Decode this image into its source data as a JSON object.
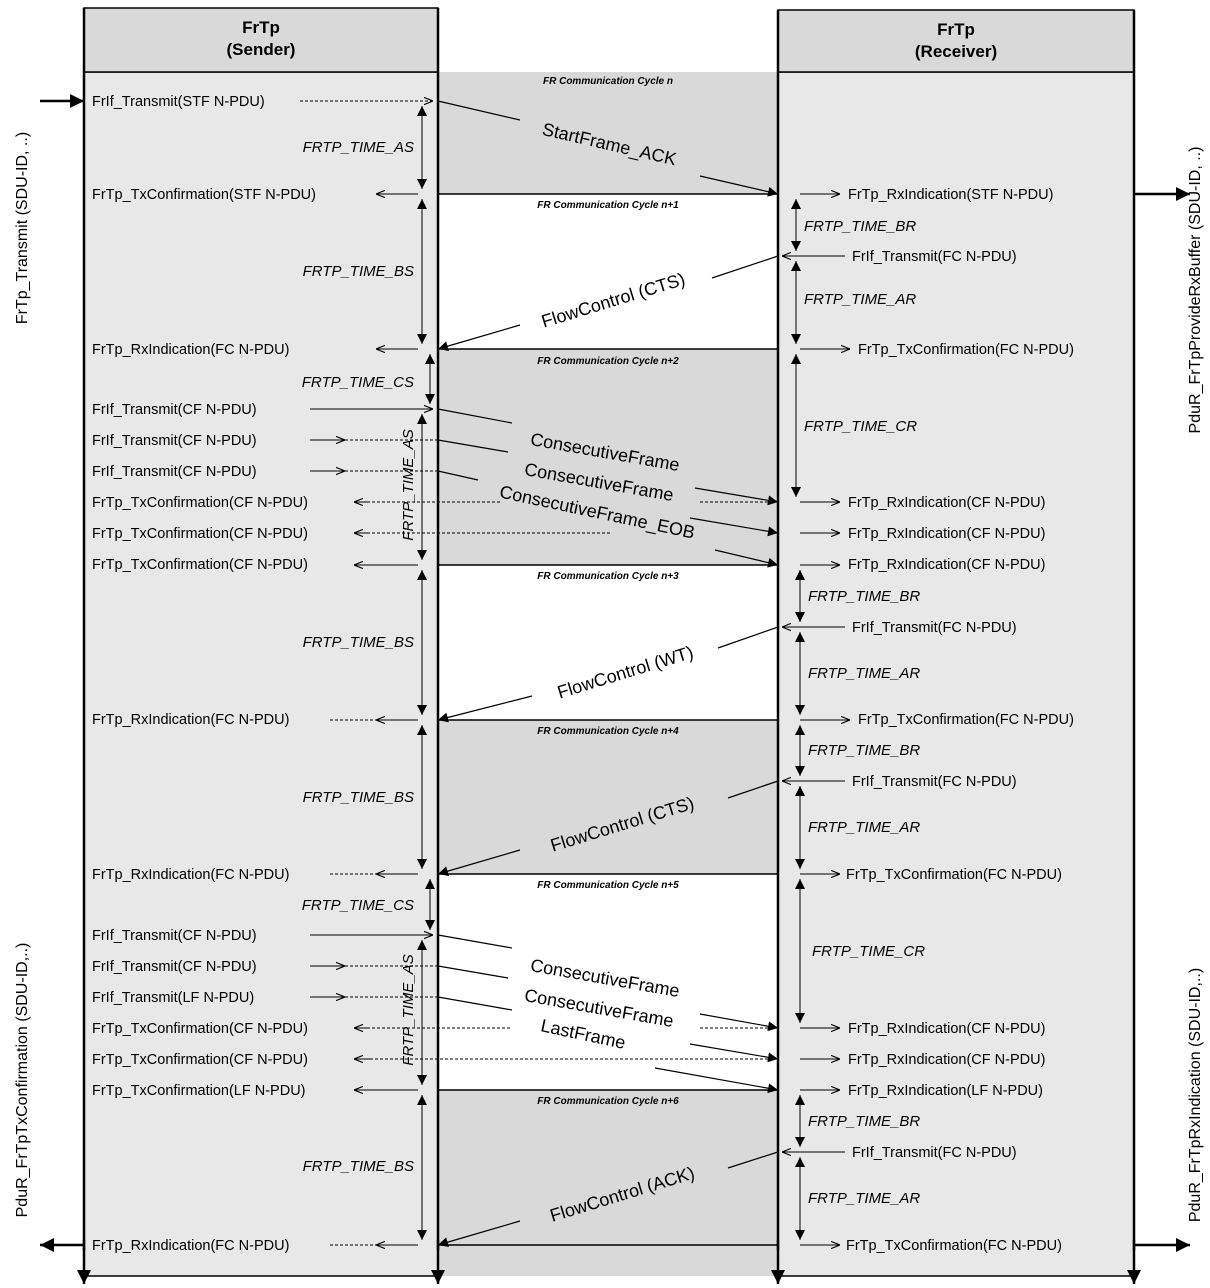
{
  "columns": {
    "sender": {
      "line1": "FrTp",
      "line2": "(Sender)"
    },
    "receiver": {
      "line1": "FrTp",
      "line2": "(Receiver)"
    }
  },
  "side_labels": {
    "left_top": "FrTp_Transmit (SDU-ID, ..)",
    "left_bottom": "PduR_FrTpTxConfirmation (SDU-ID,..)",
    "right_top": "PduR_FrTpProvideRxBuffer (SDU-ID, ..)",
    "right_bottom": "PduR_FrTpRxIndication (SDU-ID,..)"
  },
  "cycles": [
    "FR Communication Cycle n",
    "FR Communication Cycle n+1",
    "FR Communication Cycle n+2",
    "FR Communication Cycle n+3",
    "FR Communication Cycle n+4",
    "FR Communication Cycle n+5",
    "FR Communication Cycle n+6"
  ],
  "sender_msgs": [
    "FrIf_Transmit(STF N-PDU)",
    "FrTp_TxConfirmation(STF N-PDU)",
    "FrTp_RxIndication(FC N-PDU)",
    "FrIf_Transmit(CF N-PDU)",
    "FrIf_Transmit(CF N-PDU)",
    "FrIf_Transmit(CF N-PDU)",
    "FrTp_TxConfirmation(CF N-PDU)",
    "FrTp_TxConfirmation(CF N-PDU)",
    "FrTp_TxConfirmation(CF N-PDU)",
    "FrTp_RxIndication(FC N-PDU)",
    "FrTp_RxIndication(FC N-PDU)",
    "FrIf_Transmit(CF N-PDU)",
    "FrIf_Transmit(CF N-PDU)",
    "FrIf_Transmit(LF N-PDU)",
    "FrTp_TxConfirmation(CF N-PDU)",
    "FrTp_TxConfirmation(CF N-PDU)",
    "FrTp_TxConfirmation(LF N-PDU)",
    "FrTp_RxIndication(FC N-PDU)"
  ],
  "receiver_msgs": [
    "FrTp_RxIndication(STF N-PDU)",
    "FrIf_Transmit(FC N-PDU)",
    "FrTp_TxConfirmation(FC N-PDU)",
    "FrTp_RxIndication(CF N-PDU)",
    "FrTp_RxIndication(CF N-PDU)",
    "FrTp_RxIndication(CF N-PDU)",
    "FrIf_Transmit(FC N-PDU)",
    "FrTp_TxConfirmation(FC N-PDU)",
    "FrIf_Transmit(FC N-PDU)",
    "FrTp_TxConfirmation(FC N-PDU)",
    "FrTp_RxIndication(CF N-PDU)",
    "FrTp_RxIndication(CF N-PDU)",
    "FrTp_RxIndication(LF N-PDU)",
    "FrIf_Transmit(FC N-PDU)",
    "FrTp_TxConfirmation(FC N-PDU)"
  ],
  "sender_timers": [
    "FRTP_TIME_AS",
    "FRTP_TIME_BS",
    "FRTP_TIME_CS",
    "FRTP_TIME_AS",
    "FRTP_TIME_BS",
    "FRTP_TIME_BS",
    "FRTP_TIME_CS",
    "FRTP_TIME_AS",
    "FRTP_TIME_BS"
  ],
  "receiver_timers": [
    "FRTP_TIME_BR",
    "FRTP_TIME_AR",
    "FRTP_TIME_CR",
    "FRTP_TIME_BR",
    "FRTP_TIME_AR",
    "FRTP_TIME_BR",
    "FRTP_TIME_AR",
    "FRTP_TIME_CR",
    "FRTP_TIME_BR",
    "FRTP_TIME_AR"
  ],
  "frames": [
    "StartFrame_ACK",
    "FlowControl (CTS)",
    "ConsecutiveFrame",
    "ConsecutiveFrame",
    "ConsecutiveFrame_EOB",
    "FlowControl (WT)",
    "FlowControl (CTS)",
    "ConsecutiveFrame",
    "ConsecutiveFrame",
    "LastFrame",
    "FlowControl (ACK)"
  ]
}
